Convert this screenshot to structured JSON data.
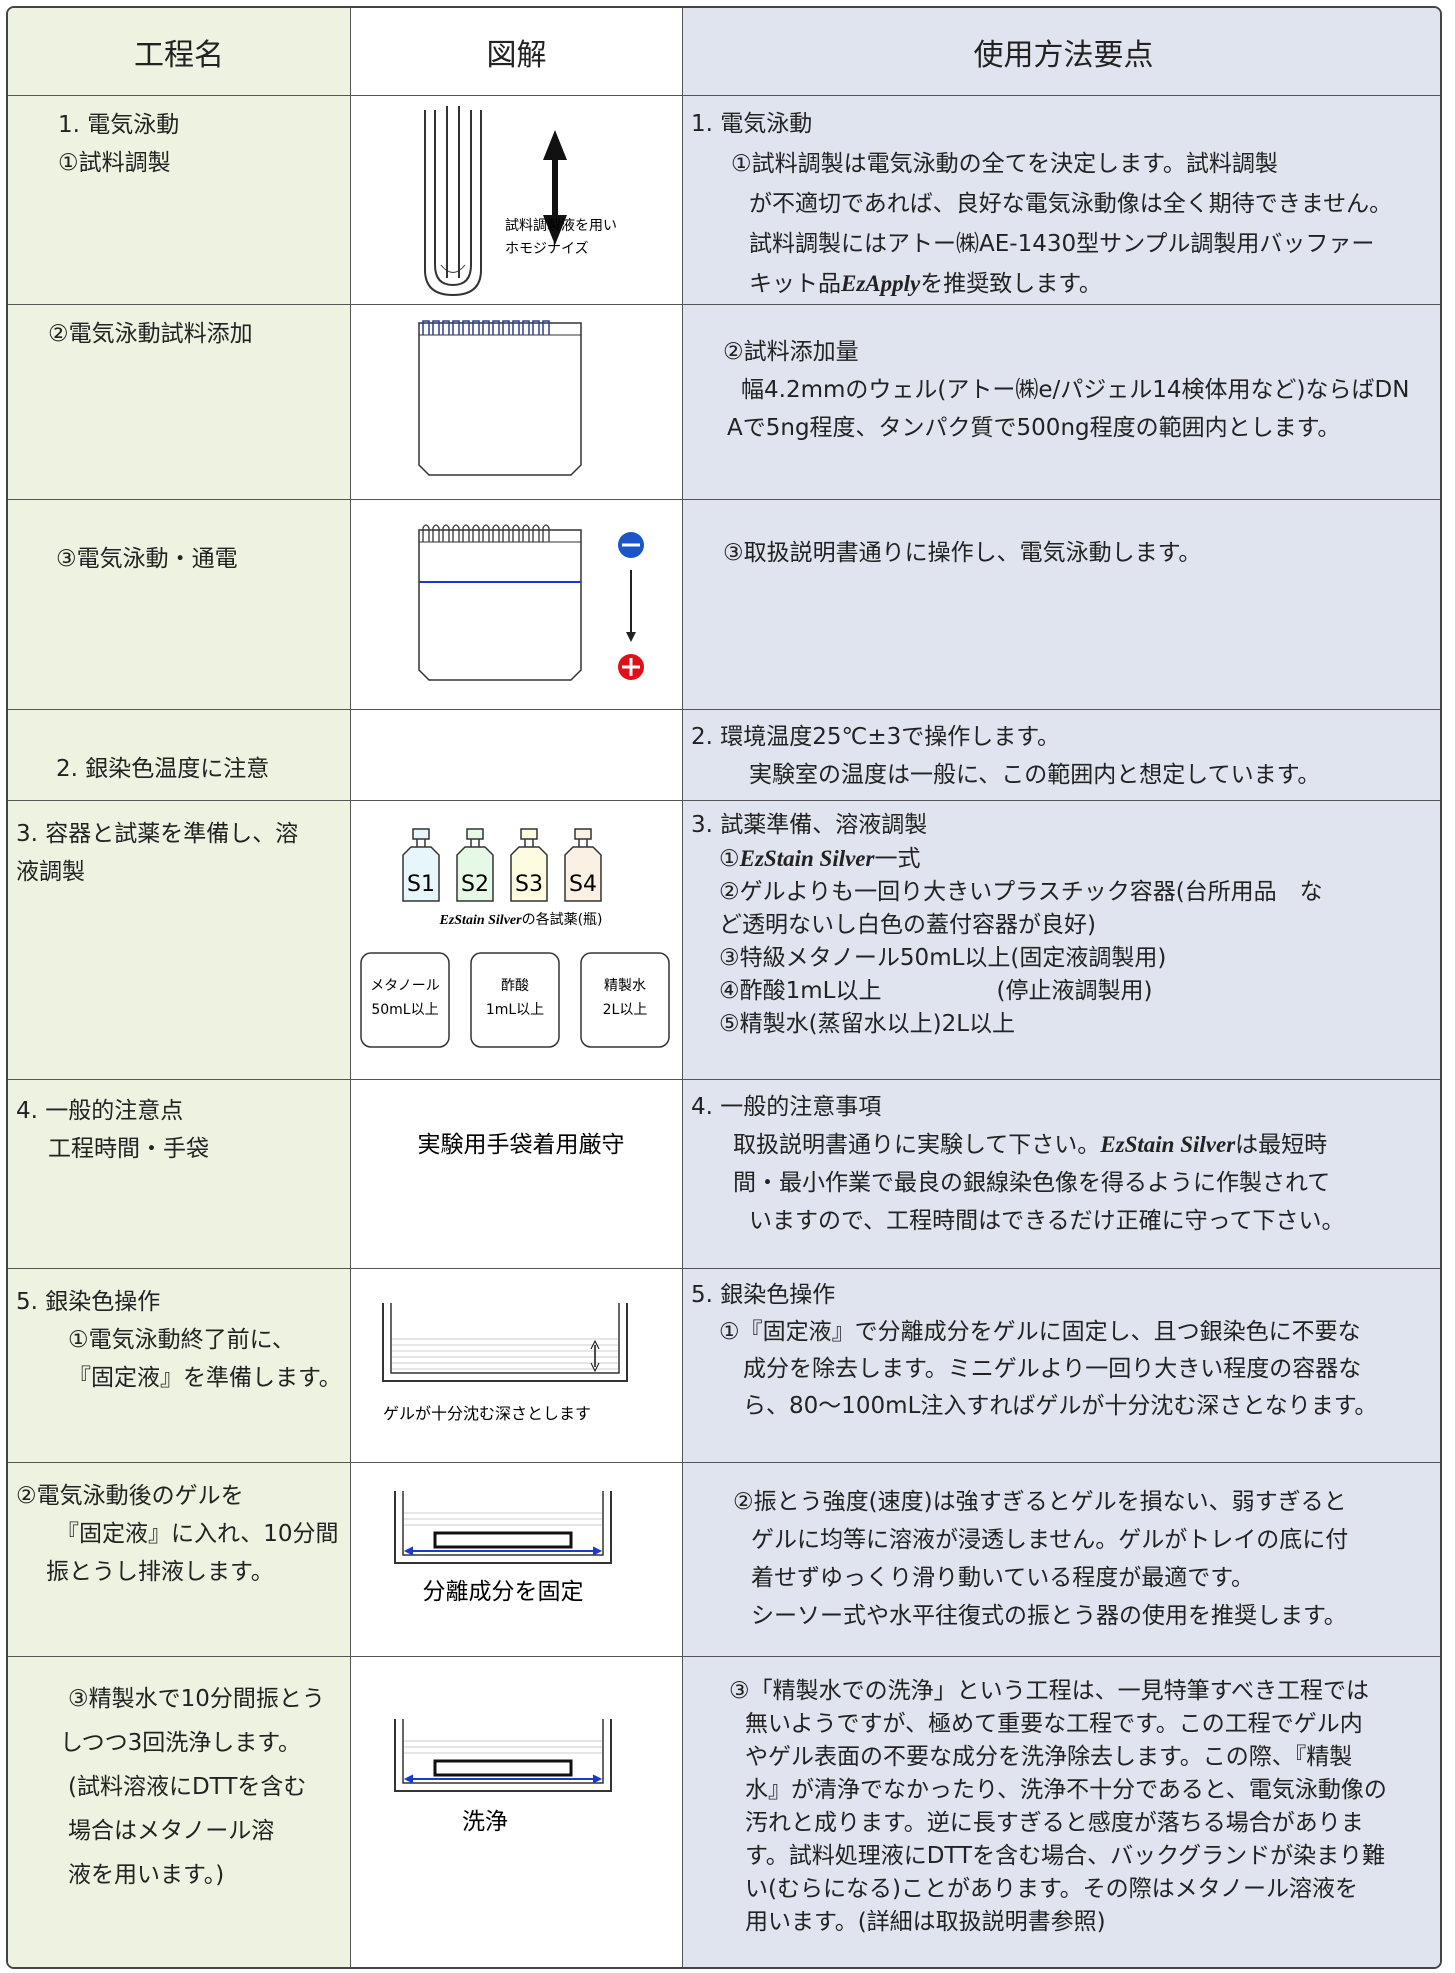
{
  "header": [
    "工程名",
    "図解",
    "使用方法要点"
  ],
  "rows": [
    {
      "step": [
        "1. 電気泳動",
        "①試料調製"
      ],
      "figure": [
        "試料調製液を用い",
        "ホモジナイズ"
      ],
      "notes": [
        "1. 電気泳動",
        "①試料調製は電気泳動の全てを決定します。試料調製",
        "が不適切であれば、良好な電気泳動像は全く期待できません。",
        "試料調製にはアトー㈱AE-1430型サンプル調製用バッファー",
        [
          "キット品",
          {
            "text": "EzApply",
            "italic": true
          },
          "を推奨致します。"
        ]
      ]
    },
    {
      "step": [
        "②電気泳動試料添加"
      ],
      "notes": [
        "②試料添加量",
        "幅4.2mmのウェル(アトー㈱e/パジェル14検体用など)ならばDN",
        "Aで5ng程度、タンパク質で500ng程度の範囲内とします。"
      ]
    },
    {
      "step": [
        "③電気泳動・通電"
      ],
      "notes": [
        "③取扱説明書通りに操作し、電気泳動します。"
      ]
    },
    {
      "step": [
        "2. 銀染色温度に注意"
      ],
      "notes": [
        "2. 環境温度25℃±3で操作します。",
        "実験室の温度は一般に、この範囲内と想定しています。"
      ]
    },
    {
      "step": [
        "3. 容器と試薬を準備し、溶",
        "液調製"
      ],
      "figure": {
        "bottles": [
          "S1",
          "S2",
          "S3",
          "S4"
        ],
        "caption": [
          {
            "text": "EzStain Silver",
            "italic": true
          },
          "の各試薬(瓶)"
        ],
        "boxes": [
          [
            "メタノール",
            "50mL以上"
          ],
          [
            "酢酸",
            "1mL以上"
          ],
          [
            "精製水",
            "2L以上"
          ]
        ]
      },
      "notes": [
        "3. 試薬準備、溶液調製",
        [
          "①",
          {
            "text": "EzStain Silver",
            "italic": true
          },
          "一式"
        ],
        "②ゲルよりも一回り大きいプラスチック容器(台所用品　な",
        "ど透明ないし白色の蓋付容器が良好)",
        "③特級メタノール50mL以上(固定液調製用)",
        "④酢酸1mL以上　　　　　(停止液調製用)",
        "⑤精製水(蒸留水以上)2L以上"
      ]
    },
    {
      "step": [
        "4. 一般的注意点",
        "工程時間・手袋"
      ],
      "figure": [
        "実験用手袋着用厳守"
      ],
      "notes": [
        "4. 一般的注意事項",
        [
          "取扱説明書通りに実験して下さい。",
          {
            "text": "EzStain Silver",
            "italic": true
          },
          "は最短時"
        ],
        "間・最小作業で最良の銀線染色像を得るように作製されて",
        "いますので、工程時間はできるだけ正確に守って下さい。"
      ]
    },
    {
      "step": [
        "5. 銀染色操作",
        "①電気泳動終了前に、",
        "『固定液』を準備します。"
      ],
      "figure": [
        "ゲルが十分沈む深さとします"
      ],
      "notes": [
        "5. 銀染色操作",
        "①『固定液』で分離成分をゲルに固定し、且つ銀染色に不要な",
        "成分を除去します。ミニゲルより一回り大きい程度の容器な",
        "ら、80～100mL注入すればゲルが十分沈む深さとなります。"
      ]
    },
    {
      "step": [
        "②電気泳動後のゲルを",
        "『固定液』に入れ、10分間",
        "振とうし排液します。"
      ],
      "figure": [
        "分離成分を固定"
      ],
      "notes": [
        "②振とう強度(速度)は強すぎるとゲルを損ない、弱すぎると",
        "ゲルに均等に溶液が浸透しません。ゲルがトレイの底に付",
        "着せずゆっくり滑り動いている程度が最適です。",
        "シーソー式や水平往復式の振とう器の使用を推奨します。"
      ]
    },
    {
      "step": [
        "③精製水で10分間振とう",
        "しつつ3回洗浄します。",
        "(試料溶液にDTTを含む",
        "場合はメタノール溶",
        "液を用います。)"
      ],
      "figure": [
        "洗浄"
      ],
      "notes": [
        "③「精製水での洗浄」という工程は、一見特筆すべき工程では",
        "無いようですが、極めて重要な工程です。この工程でゲル内",
        "やゲル表面の不要な成分を洗浄除去します。この際、『精製",
        "水』が清浄でなかったり、洗浄不十分であると、電気泳動像の",
        "汚れと成ります。逆に長すぎると感度が落ちる場合がありま",
        "す。試料処理液にDTTを含む場合、バックグランドが染まり難",
        "い(むらになる)ことがあります。その際はメタノール溶液を",
        "用います。(詳細は取扱説明書参照)"
      ]
    }
  ]
}
